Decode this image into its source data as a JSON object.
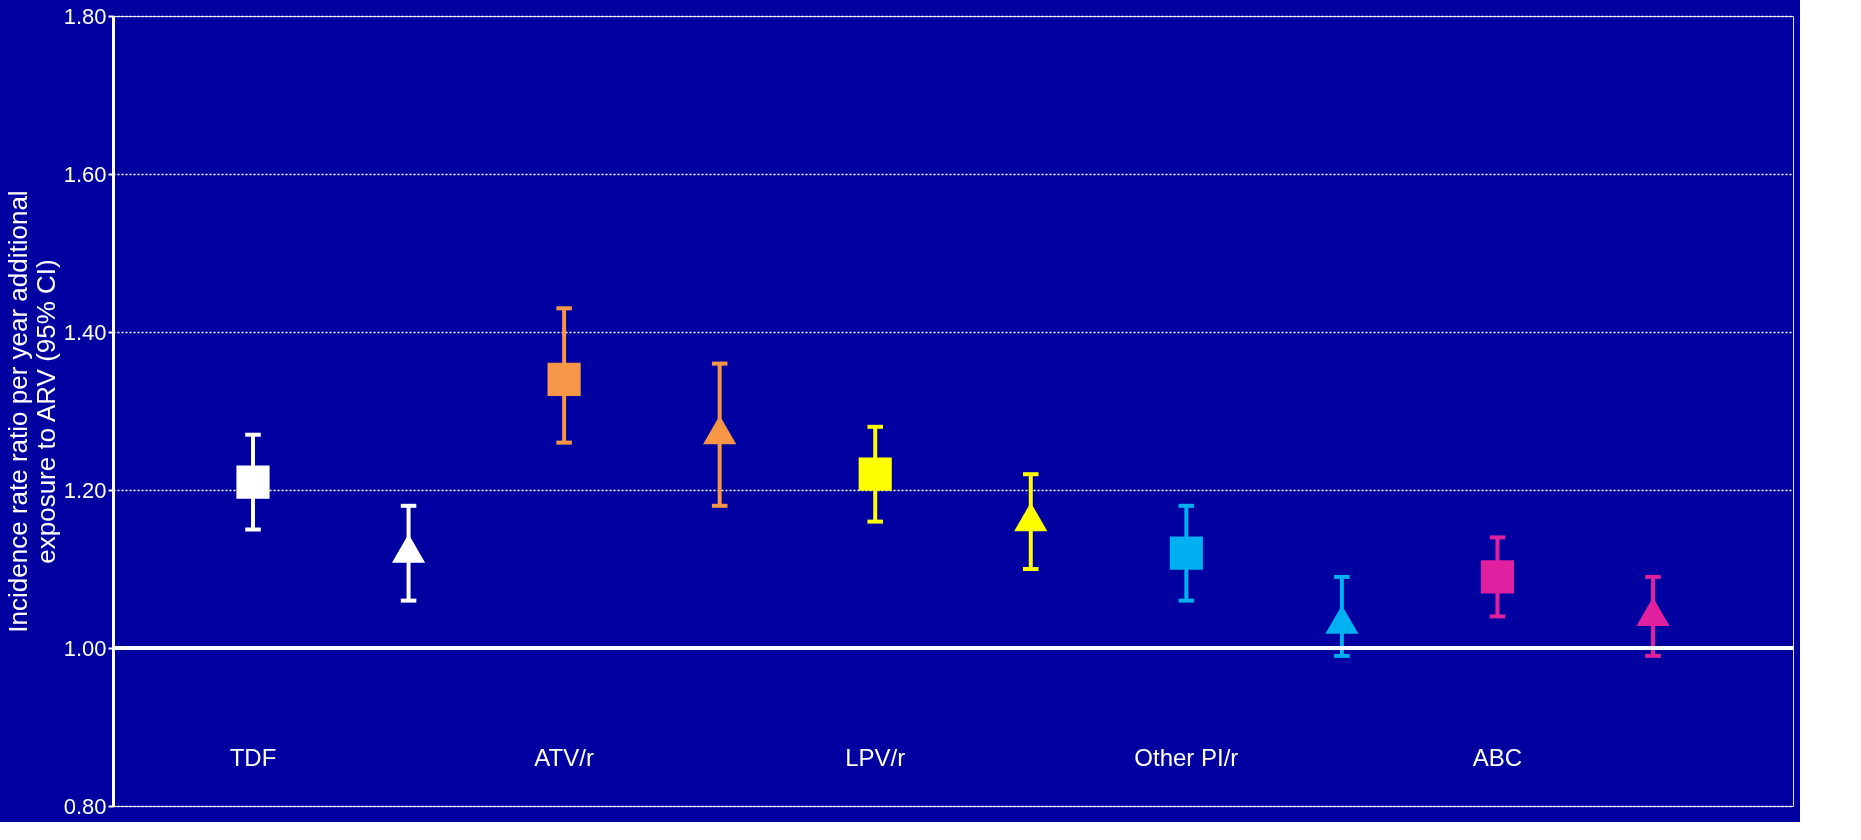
{
  "chart_data": {
    "type": "scatter",
    "ylabel": "Incidence rate ratio per year additional\nexposure to ARV (95% CI)",
    "categories": [
      "TDF",
      null,
      "ATV/r",
      null,
      "LPV/r",
      null,
      "Other PI/r",
      null,
      "ABC",
      null
    ],
    "series": [
      {
        "marker": "square",
        "colors": [
          "#ffffff",
          null,
          "#f79646",
          null,
          "#ffff00",
          null,
          "#00b0f0",
          null,
          "#e0209f",
          null
        ],
        "values": [
          1.21,
          null,
          1.34,
          null,
          1.22,
          null,
          1.12,
          null,
          1.09,
          null
        ],
        "errors": [
          [
            1.15,
            1.27
          ],
          null,
          [
            1.26,
            1.43
          ],
          null,
          [
            1.16,
            1.28
          ],
          null,
          [
            1.06,
            1.18
          ],
          null,
          [
            1.04,
            1.14
          ],
          null
        ]
      },
      {
        "marker": "triangle",
        "colors": [
          null,
          "#ffffff",
          null,
          "#f79646",
          null,
          "#ffff00",
          null,
          "#00b0f0",
          null,
          "#e0209f"
        ],
        "values": [
          null,
          1.12,
          null,
          1.27,
          null,
          1.16,
          null,
          1.03,
          null,
          1.04
        ],
        "errors": [
          null,
          [
            1.06,
            1.18
          ],
          null,
          [
            1.18,
            1.36
          ],
          null,
          [
            1.1,
            1.22
          ],
          null,
          [
            0.99,
            1.09
          ],
          null,
          [
            0.99,
            1.09
          ]
        ]
      }
    ],
    "ylim": [
      0.8,
      1.8
    ],
    "yticks": [
      {
        "value": 0.8,
        "label": "0.80"
      },
      {
        "value": 1.0,
        "label": "1.00"
      },
      {
        "value": 1.2,
        "label": "1.20"
      },
      {
        "value": 1.4,
        "label": "1.40"
      },
      {
        "value": 1.6,
        "label": "1.60"
      },
      {
        "value": 1.8,
        "label": "1.80"
      }
    ],
    "grid": "y",
    "legend": false,
    "ref_lines": [
      {
        "axis": "y",
        "value": 1.0,
        "color": "#ffffff",
        "line_style": "solid"
      }
    ]
  }
}
